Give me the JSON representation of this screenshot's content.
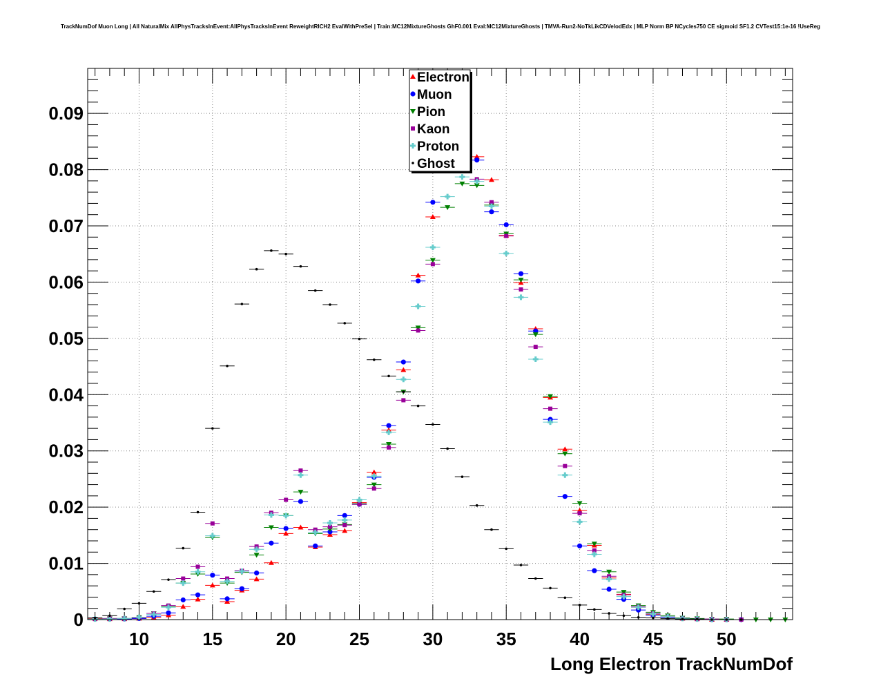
{
  "chart_data": {
    "type": "scatter",
    "title": "TrackNumDof Muon Long | All NaturalMix AllPhysTracksInEvent:AllPhysTracksInEvent ReweightRICH2 EvalWithPreSel | Train:MC12MixtureGhosts GhF0.001 Eval:MC12MixtureGhosts | TMVA-Run2-NoTkLikCDVelodEdx | MLP Norm BP NCycles750 CE sigmoid SF1.2 CVTest15:1e-16 !UseReg",
    "xlabel": "Long Electron TrackNumDof",
    "ylabel": "",
    "xlim": [
      6.5,
      54.5
    ],
    "ylim": [
      0,
      0.098
    ],
    "x_ticks": [
      10,
      15,
      20,
      25,
      30,
      35,
      40,
      45,
      50
    ],
    "x_tick_labels": [
      "10",
      "15",
      "20",
      "25",
      "30",
      "35",
      "40",
      "45",
      "50"
    ],
    "y_ticks": [
      0,
      0.01,
      0.02,
      0.03,
      0.04,
      0.05,
      0.06,
      0.07,
      0.08,
      0.09
    ],
    "y_tick_labels": [
      "0",
      "0.01",
      "0.02",
      "0.03",
      "0.04",
      "0.05",
      "0.06",
      "0.07",
      "0.08",
      "0.09"
    ],
    "grid": true,
    "legend_position": "top-center",
    "x": [
      7,
      8,
      9,
      10,
      11,
      12,
      13,
      14,
      15,
      16,
      17,
      18,
      19,
      20,
      21,
      22,
      23,
      24,
      25,
      26,
      27,
      28,
      29,
      30,
      31,
      32,
      33,
      34,
      35,
      36,
      37,
      38,
      39,
      40,
      41,
      42,
      43,
      44,
      45,
      46,
      47,
      48,
      49,
      50,
      51,
      52,
      53,
      54
    ],
    "series": [
      {
        "name": "Electron",
        "marker": "triangle-up",
        "color": "#ff0000",
        "values": [
          0.0002,
          0.0001,
          0.0001,
          0.0002,
          0.0004,
          0.0008,
          0.0023,
          0.0036,
          0.0061,
          0.0032,
          0.0052,
          0.0072,
          0.0101,
          0.0153,
          0.0164,
          0.0129,
          0.0151,
          0.0158,
          0.0208,
          0.0262,
          0.0337,
          0.0444,
          0.0612,
          0.0716,
          null,
          null,
          0.0823,
          0.0782,
          0.0683,
          0.0599,
          0.0517,
          0.0395,
          0.0303,
          0.0194,
          0.0132,
          0.0074,
          0.0045,
          0.0022,
          0.0009,
          0.0005,
          0.0002,
          0.0001,
          0.0,
          0.0,
          null,
          null,
          null,
          null
        ]
      },
      {
        "name": "Muon",
        "marker": "circle",
        "color": "#0000ff",
        "values": [
          0.0001,
          0.0001,
          0.0001,
          0.0002,
          0.0006,
          0.0012,
          0.0035,
          0.0044,
          0.0079,
          0.0037,
          0.0055,
          0.0083,
          0.0136,
          0.0162,
          0.021,
          0.0131,
          0.0156,
          0.0185,
          0.0205,
          0.0253,
          0.0345,
          0.0458,
          0.0602,
          0.0742,
          null,
          null,
          0.0817,
          0.0725,
          0.0702,
          0.0615,
          0.0513,
          0.0356,
          0.0219,
          0.0131,
          0.0087,
          0.0054,
          0.0036,
          0.0017,
          0.0008,
          0.0004,
          0.0002,
          0.0001,
          0.0,
          0.0,
          0.0,
          null,
          null,
          null
        ]
      },
      {
        "name": "Pion",
        "marker": "triangle-down",
        "color": "#008000",
        "values": [
          0.0001,
          0.0002,
          0.0002,
          0.0004,
          0.0011,
          0.0023,
          0.0065,
          0.0081,
          0.0146,
          0.0065,
          0.0084,
          0.0115,
          0.0164,
          0.0185,
          0.0227,
          0.0153,
          0.0161,
          0.0169,
          0.0206,
          0.024,
          0.0312,
          0.0405,
          0.0519,
          0.0639,
          0.0733,
          0.0775,
          0.0772,
          0.0737,
          0.0686,
          0.0604,
          0.0507,
          0.0397,
          0.0295,
          0.0207,
          0.0135,
          0.0085,
          0.0049,
          0.0025,
          0.0013,
          0.0007,
          0.0003,
          0.0002,
          0.0001,
          0.0001,
          0.0,
          0.0,
          0.0,
          0.0
        ]
      },
      {
        "name": "Kaon",
        "marker": "square",
        "color": "#990099",
        "values": [
          0.0001,
          0.0002,
          0.0002,
          0.0003,
          0.0011,
          0.0025,
          0.0073,
          0.0094,
          0.0171,
          0.0073,
          0.0087,
          0.013,
          0.019,
          0.0213,
          0.0265,
          0.016,
          0.0165,
          0.0168,
          0.0205,
          0.0233,
          0.0306,
          0.039,
          0.0514,
          0.0632,
          null,
          null,
          0.0783,
          0.0742,
          0.0682,
          0.0587,
          0.0485,
          0.0375,
          0.0273,
          0.0189,
          0.0123,
          0.0077,
          0.0044,
          0.0023,
          0.0011,
          0.0005,
          0.0002,
          0.0001,
          0.0001,
          0.0,
          0.0,
          null,
          null,
          null
        ]
      },
      {
        "name": "Proton",
        "marker": "cross",
        "color": "#66cccc",
        "values": [
          0.0001,
          0.0001,
          0.0002,
          0.0004,
          0.0009,
          0.0022,
          0.0065,
          0.0085,
          0.0149,
          0.0068,
          0.0086,
          0.0125,
          0.0186,
          0.0185,
          0.0257,
          0.0155,
          0.0172,
          0.0177,
          0.0213,
          0.0255,
          0.0333,
          0.0427,
          0.0557,
          0.0662,
          0.0752,
          0.0787,
          0.0779,
          0.0735,
          0.0651,
          0.0573,
          0.0463,
          0.0351,
          0.0257,
          0.0174,
          0.0116,
          0.0072,
          0.0041,
          0.0022,
          0.001,
          0.0005,
          0.0002,
          0.0001,
          0.0,
          0.0,
          null,
          null,
          null,
          null
        ]
      },
      {
        "name": "Ghost",
        "marker": "dot",
        "color": "#000000",
        "values": [
          0.0003,
          0.0007,
          0.0019,
          0.0029,
          0.005,
          0.0071,
          0.0127,
          0.0191,
          0.034,
          0.0451,
          0.0561,
          0.0623,
          0.0656,
          0.065,
          0.0628,
          0.0585,
          0.056,
          0.0527,
          0.0499,
          0.0462,
          0.0433,
          0.0405,
          0.038,
          0.0347,
          0.0304,
          0.0254,
          0.0203,
          0.016,
          0.0126,
          0.0097,
          0.0073,
          0.0056,
          0.0039,
          0.0026,
          0.0018,
          0.0011,
          0.0007,
          0.0004,
          0.0003,
          0.0002,
          0.0001,
          0.0001,
          0.0,
          0.0,
          0.0,
          null,
          null,
          null
        ]
      }
    ]
  }
}
